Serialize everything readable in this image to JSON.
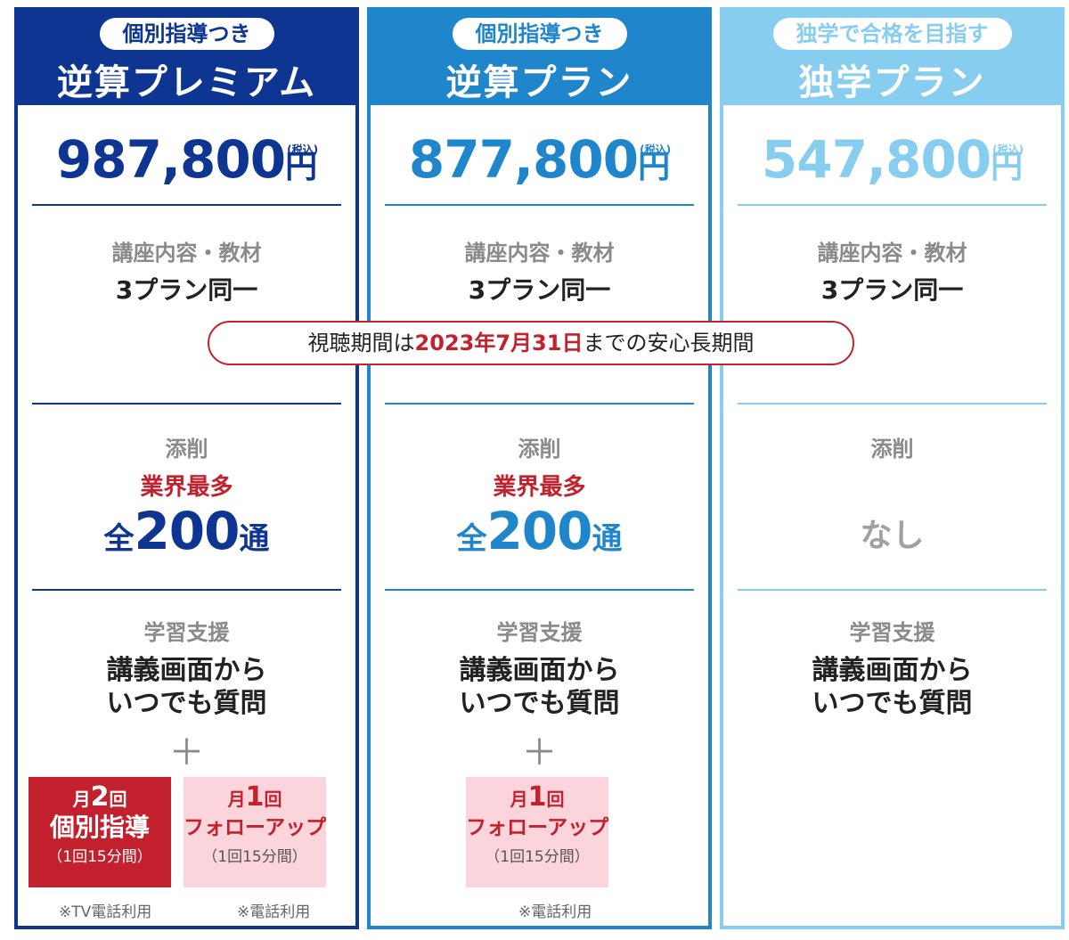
{
  "plans": [
    {
      "badge": "個別指導つき",
      "name": "逆算プレミアム",
      "price": "987,800",
      "yen": "円",
      "tax": "(税込)",
      "course_label": "講座内容・教材",
      "course_value": "3プラン同一",
      "correction_label": "添削",
      "correction_highlight": "業界最多",
      "correction_prefix": "全",
      "correction_count": "200",
      "correction_suffix": "通",
      "support_label": "学習支援",
      "support_line1": "講義画面から",
      "support_line2": "いつでも質問",
      "plus": "＋",
      "box1": {
        "prefix": "月",
        "num": "2",
        "unit": "回",
        "title": "個別指導",
        "note": "（1回15分間）"
      },
      "box1_footnote": "※TV電話利用",
      "box2": {
        "prefix": "月",
        "num": "1",
        "unit": "回",
        "title": "フォローアップ",
        "note": "（1回15分間）"
      },
      "box2_footnote": "※電話利用"
    },
    {
      "badge": "個別指導つき",
      "name": "逆算プラン",
      "price": "877,800",
      "yen": "円",
      "tax": "(税込)",
      "course_label": "講座内容・教材",
      "course_value": "3プラン同一",
      "correction_label": "添削",
      "correction_highlight": "業界最多",
      "correction_prefix": "全",
      "correction_count": "200",
      "correction_suffix": "通",
      "support_label": "学習支援",
      "support_line1": "講義画面から",
      "support_line2": "いつでも質問",
      "plus": "＋",
      "box1": {
        "prefix": "月",
        "num": "1",
        "unit": "回",
        "title": "フォローアップ",
        "note": "（1回15分間）"
      },
      "box1_footnote": "※電話利用"
    },
    {
      "badge": "独学で合格を目指す",
      "name": "独学プラン",
      "price": "547,800",
      "yen": "円",
      "tax": "(税込)",
      "course_label": "講座内容・教材",
      "course_value": "3プラン同一",
      "correction_label": "添削",
      "correction_none": "なし",
      "support_label": "学習支援",
      "support_line1": "講義画面から",
      "support_line2": "いつでも質問"
    }
  ],
  "banner": {
    "before": "視聴期間は",
    "emphasis": "2023年7月31日",
    "after": "までの安心長期間"
  },
  "colors": {
    "premium": "#0d3591",
    "standard": "#1f86cc",
    "self_study": "#87cdf0",
    "accent_red": "#c3212d",
    "pink": "#fcd4dc"
  }
}
